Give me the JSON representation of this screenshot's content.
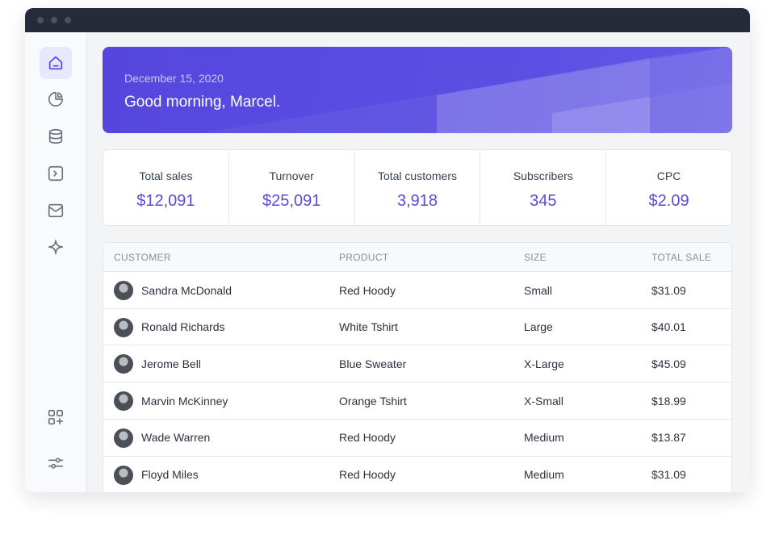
{
  "header": {
    "date": "December 15, 2020",
    "greeting": "Good morning, Marcel."
  },
  "stats": [
    {
      "label": "Total sales",
      "value": "$12,091"
    },
    {
      "label": "Turnover",
      "value": "$25,091"
    },
    {
      "label": "Total customers",
      "value": "3,918"
    },
    {
      "label": "Subscribers",
      "value": "345"
    },
    {
      "label": "CPC",
      "value": "$2.09"
    }
  ],
  "table": {
    "columns": [
      "CUSTOMER",
      "PRODUCT",
      "SIZE",
      "TOTAL SALE"
    ],
    "rows": [
      [
        "Sandra McDonald",
        "Red Hoody",
        "Small",
        "$31.09"
      ],
      [
        "Ronald Richards",
        "White Tshirt",
        "Large",
        "$40.01"
      ],
      [
        "Jerome Bell",
        "Blue Sweater",
        "X-Large",
        "$45.09"
      ],
      [
        "Marvin McKinney",
        "Orange Tshirt",
        "X-Small",
        "$18.99"
      ],
      [
        "Wade Warren",
        "Red Hoody",
        "Medium",
        "$13.87"
      ],
      [
        "Floyd Miles",
        "Red Hoody",
        "Medium",
        "$31.09"
      ]
    ]
  }
}
